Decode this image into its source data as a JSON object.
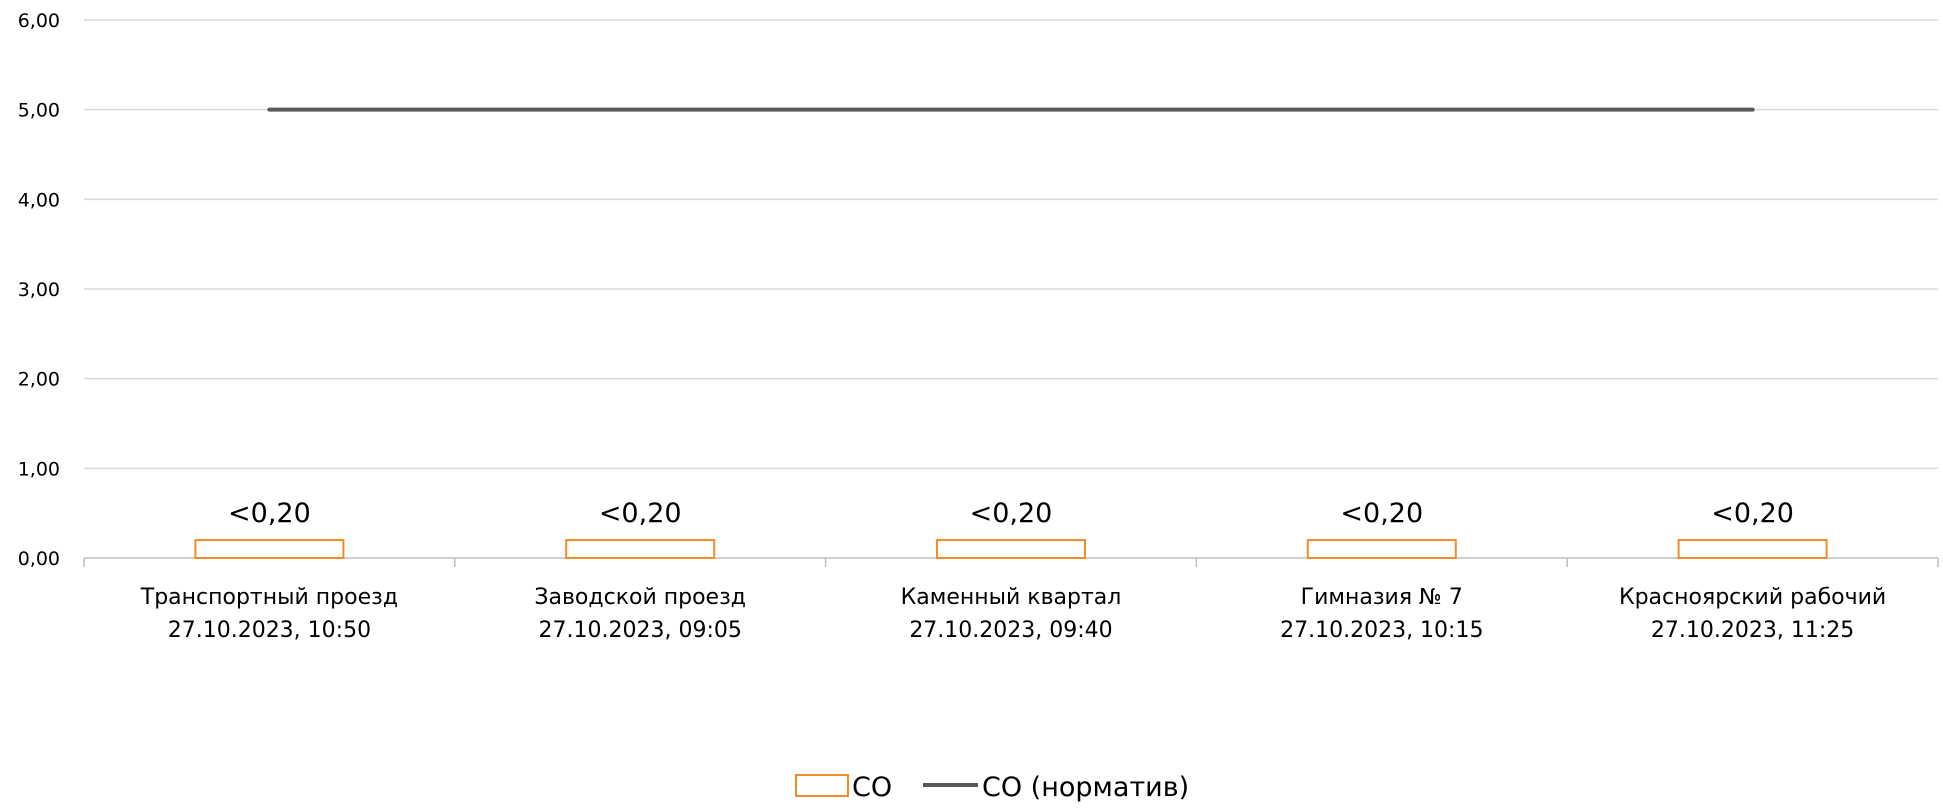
{
  "chart_data": {
    "type": "bar",
    "categories": [
      [
        "Транспортный проезд",
        "27.10.2023, 10:50"
      ],
      [
        "Заводской проезд",
        "27.10.2023, 09:05"
      ],
      [
        "Каменный квартал",
        "27.10.2023, 09:40"
      ],
      [
        "Гимназия № 7",
        "27.10.2023, 10:15"
      ],
      [
        "Красноярский рабочий",
        "27.10.2023, 11:25"
      ]
    ],
    "series": [
      {
        "name": "CO",
        "kind": "bar",
        "values": [
          0.2,
          0.2,
          0.2,
          0.2,
          0.2
        ],
        "labels": [
          "<0,20",
          "<0,20",
          "<0,20",
          "<0,20",
          "<0,20"
        ],
        "color": "#F28C28",
        "fill": "none"
      },
      {
        "name": "CO (норматив)",
        "kind": "line",
        "values": [
          5.0,
          5.0,
          5.0,
          5.0,
          5.0
        ],
        "color": "#595959"
      }
    ],
    "yticks": [
      "0,00",
      "1,00",
      "2,00",
      "3,00",
      "4,00",
      "5,00",
      "6,00"
    ],
    "ylim": [
      0,
      6
    ],
    "grid": true,
    "legend_position": "bottom"
  }
}
